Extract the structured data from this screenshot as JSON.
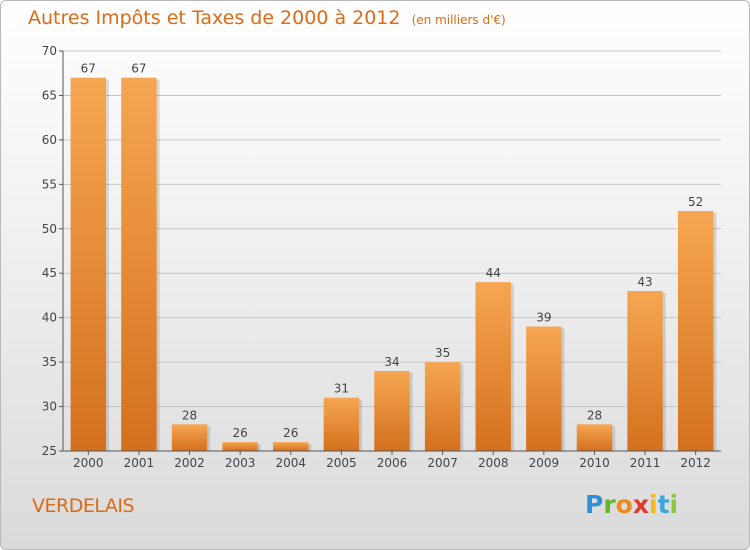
{
  "title": "Autres Impôts et Taxes de 2000 à 2012",
  "unit_note": "(en milliers d'€)",
  "place": "VERDELAIS",
  "logo": {
    "letters": [
      "P",
      "r",
      "o",
      "x",
      "i",
      "t",
      "i"
    ],
    "colors": [
      "#2e8fd8",
      "#66b32e",
      "#f08a1c",
      "#e13a2a",
      "#f2b81c",
      "#3aa6dc",
      "#8cc63f"
    ]
  },
  "colors": {
    "text": "#dd6a14",
    "bar_light": "#f6a652",
    "bar_dark": "#d4701d",
    "grid": "#c4c4c4",
    "axis_text": "#444444"
  },
  "chart_data": {
    "type": "bar",
    "categories": [
      "2000",
      "2001",
      "2002",
      "2003",
      "2004",
      "2005",
      "2006",
      "2007",
      "2008",
      "2009",
      "2010",
      "2011",
      "2012"
    ],
    "values": [
      67,
      67,
      28,
      26,
      26,
      31,
      34,
      35,
      44,
      39,
      28,
      43,
      52
    ],
    "ylim": [
      25,
      70
    ],
    "yticks": [
      25,
      30,
      35,
      40,
      45,
      50,
      55,
      60,
      65,
      70
    ],
    "grid": true,
    "data_labels": true,
    "title": "Autres Impôts et Taxes de 2000 à 2012",
    "xlabel": "",
    "ylabel": ""
  }
}
